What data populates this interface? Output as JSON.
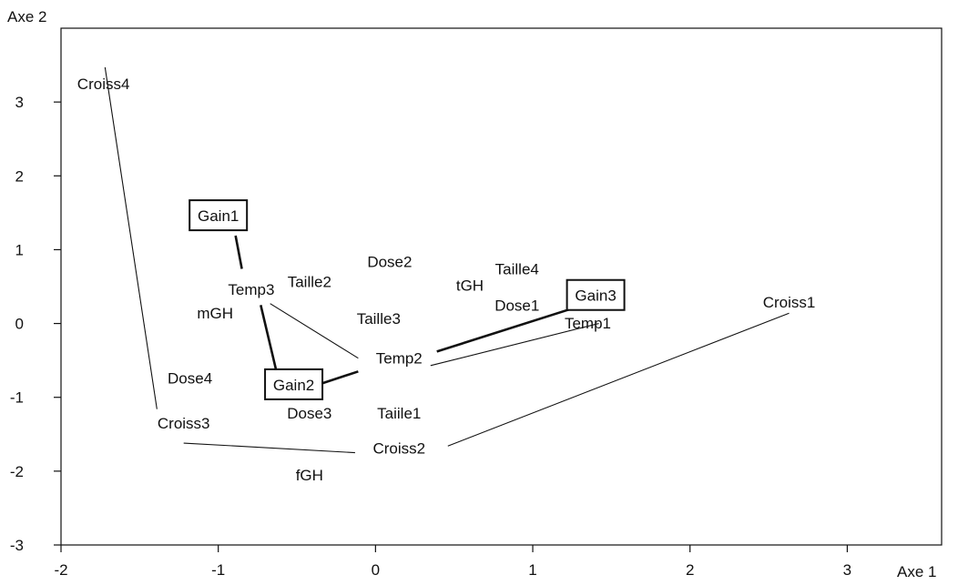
{
  "chart_data": {
    "type": "scatter",
    "title": "",
    "xlabel": "Axe 1",
    "ylabel": "Axe 2",
    "xlim": [
      -2,
      3.6
    ],
    "ylim": [
      -3,
      4.0
    ],
    "xticks": [
      -2,
      -1,
      0,
      1,
      2,
      3
    ],
    "yticks": [
      -3,
      -2,
      -1,
      0,
      1,
      2,
      3
    ],
    "grid": false,
    "points": [
      {
        "label": "Croiss4",
        "x": -1.73,
        "y": 3.25,
        "boxed": false
      },
      {
        "label": "Gain1",
        "x": -1.0,
        "y": 1.46,
        "boxed": true
      },
      {
        "label": "Dose2",
        "x": 0.09,
        "y": 0.84,
        "boxed": false
      },
      {
        "label": "Taille2",
        "x": -0.42,
        "y": 0.57,
        "boxed": false
      },
      {
        "label": "Temp3",
        "x": -0.79,
        "y": 0.46,
        "boxed": false
      },
      {
        "label": "mGH",
        "x": -1.02,
        "y": 0.14,
        "boxed": false
      },
      {
        "label": "Taille3",
        "x": 0.02,
        "y": 0.07,
        "boxed": false
      },
      {
        "label": "Taille4",
        "x": 0.9,
        "y": 0.74,
        "boxed": false
      },
      {
        "label": "tGH",
        "x": 0.6,
        "y": 0.52,
        "boxed": false
      },
      {
        "label": "Dose1",
        "x": 0.9,
        "y": 0.25,
        "boxed": false
      },
      {
        "label": "Gain3",
        "x": 1.4,
        "y": 0.38,
        "boxed": true
      },
      {
        "label": "Temp1",
        "x": 1.35,
        "y": 0.01,
        "boxed": false
      },
      {
        "label": "Croiss1",
        "x": 2.63,
        "y": 0.29,
        "boxed": false
      },
      {
        "label": "Temp2",
        "x": 0.15,
        "y": -0.47,
        "boxed": false
      },
      {
        "label": "Dose4",
        "x": -1.18,
        "y": -0.74,
        "boxed": false
      },
      {
        "label": "Gain2",
        "x": -0.52,
        "y": -0.83,
        "boxed": true
      },
      {
        "label": "Dose3",
        "x": -0.42,
        "y": -1.21,
        "boxed": false
      },
      {
        "label": "Taiile1",
        "x": 0.15,
        "y": -1.21,
        "boxed": false
      },
      {
        "label": "Croiss3",
        "x": -1.22,
        "y": -1.35,
        "boxed": false
      },
      {
        "label": "Croiss2",
        "x": 0.15,
        "y": -1.69,
        "boxed": false
      },
      {
        "label": "fGH",
        "x": -0.42,
        "y": -2.05,
        "boxed": false
      }
    ],
    "segments": [
      {
        "x1": -1.72,
        "y1": 3.47,
        "x2": -1.39,
        "y2": -1.16,
        "weight": "thin"
      },
      {
        "x1": -1.22,
        "y1": -1.62,
        "x2": -0.13,
        "y2": -1.75,
        "weight": "thin"
      },
      {
        "x1": 0.46,
        "y1": -1.66,
        "x2": 2.63,
        "y2": 0.14,
        "weight": "thin"
      },
      {
        "x1": -0.89,
        "y1": 1.19,
        "x2": -0.85,
        "y2": 0.74,
        "weight": "thick"
      },
      {
        "x1": -0.73,
        "y1": 0.25,
        "x2": -0.63,
        "y2": -0.65,
        "weight": "thick"
      },
      {
        "x1": -0.41,
        "y1": -0.86,
        "x2": -0.11,
        "y2": -0.65,
        "weight": "thick"
      },
      {
        "x1": 0.39,
        "y1": -0.38,
        "x2": 1.35,
        "y2": 0.27,
        "weight": "thick"
      },
      {
        "x1": -0.67,
        "y1": 0.27,
        "x2": -0.11,
        "y2": -0.47,
        "weight": "thin"
      },
      {
        "x1": 0.35,
        "y1": -0.57,
        "x2": 1.42,
        "y2": 0.0,
        "weight": "thin"
      }
    ]
  }
}
